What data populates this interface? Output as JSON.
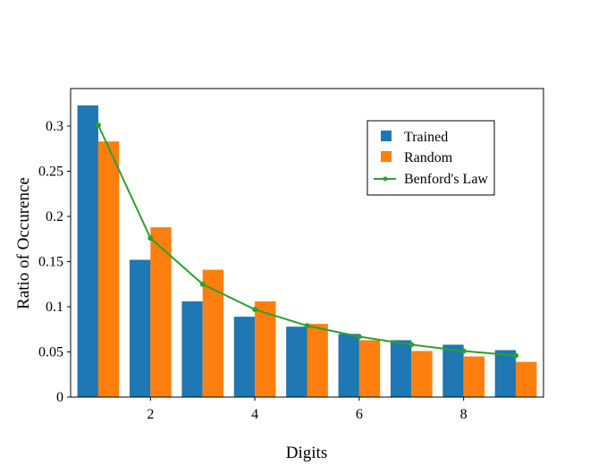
{
  "chart_data": {
    "type": "bar",
    "title": "",
    "xlabel": "Digits",
    "ylabel": "Ratio of Occurence",
    "xlim": [
      0.47,
      9.53
    ],
    "ylim": [
      0,
      0.3416
    ],
    "xticks": [
      2,
      4,
      6,
      8
    ],
    "xtick_labels": [
      "2",
      "4",
      "6",
      "8"
    ],
    "yticks": [
      0,
      0.05,
      0.1,
      0.15,
      0.2,
      0.25,
      0.3
    ],
    "ytick_labels": [
      "0",
      "0.05",
      "0.1",
      "0.15",
      "0.2",
      "0.25",
      "0.3"
    ],
    "categories": [
      1,
      2,
      3,
      4,
      5,
      6,
      7,
      8,
      9
    ],
    "grid": false,
    "legend_position": "top-right",
    "series": [
      {
        "name": "Trained",
        "kind": "bar",
        "color": "#1f77b4",
        "offset": -0.2,
        "values": [
          0.323,
          0.152,
          0.106,
          0.089,
          0.078,
          0.07,
          0.063,
          0.058,
          0.052
        ]
      },
      {
        "name": "Random",
        "kind": "bar",
        "color": "#ff7f0e",
        "offset": 0.2,
        "values": [
          0.283,
          0.188,
          0.141,
          0.106,
          0.081,
          0.063,
          0.051,
          0.045,
          0.039
        ]
      },
      {
        "name": "Benford's Law",
        "kind": "line",
        "color": "#2ca02c",
        "values": [
          0.301,
          0.176,
          0.125,
          0.097,
          0.079,
          0.067,
          0.058,
          0.051,
          0.046
        ]
      }
    ]
  }
}
